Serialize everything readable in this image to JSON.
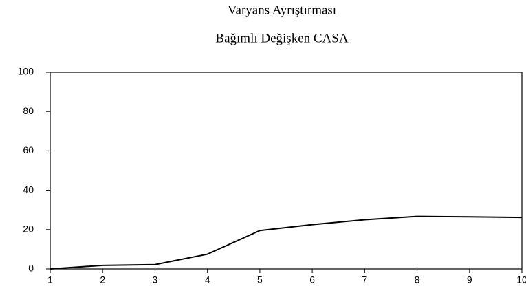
{
  "chart_data": {
    "type": "line",
    "title": "Varyans Ayrıştırması",
    "subtitle": "Bağımlı Değişken CASA",
    "x": [
      1,
      2,
      3,
      4,
      5,
      6,
      7,
      8,
      9,
      10
    ],
    "series": [
      {
        "color": "#000000",
        "values": [
          0,
          1.8,
          2.2,
          7.5,
          19.5,
          22.5,
          25,
          26.7,
          26.5,
          26.2
        ]
      }
    ],
    "xlim": [
      1,
      10
    ],
    "xticks": [
      1,
      2,
      3,
      4,
      5,
      6,
      7,
      8,
      9,
      10
    ],
    "ylim": [
      0,
      100
    ],
    "yticks": [
      0,
      20,
      40,
      60,
      80,
      100
    ],
    "grid": false
  }
}
